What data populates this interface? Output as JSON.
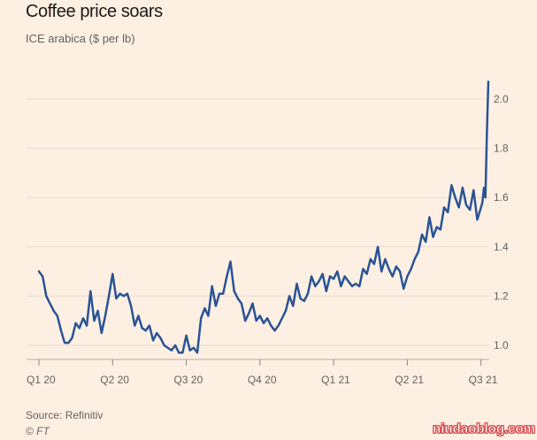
{
  "header": {
    "title": "Coffee price soars",
    "subtitle": "ICE arabica ($ per lb)"
  },
  "footer": {
    "source": "Source: Refinitiv",
    "copyright": "© FT"
  },
  "watermark": "niudaoblog.com",
  "colors": {
    "line": "#2a5394",
    "grid": "#e6d9ce",
    "background": "#fdf0e3",
    "text": "#66605c"
  },
  "chart_data": {
    "type": "line",
    "title": "Coffee price soars",
    "subtitle": "ICE arabica ($ per lb)",
    "ylabel": "",
    "xlabel": "",
    "ylim": [
      0.95,
      2.1
    ],
    "xlim": [
      0,
      6.1
    ],
    "yticks": [
      1.0,
      1.2,
      1.4,
      1.6,
      1.8,
      2.0
    ],
    "ytick_labels": [
      "1.0",
      "1.2",
      "1.4",
      "1.6",
      "1.8",
      "2.0"
    ],
    "xticks": [
      0,
      1,
      2,
      3,
      4,
      5,
      6
    ],
    "xtick_labels": [
      "Q1 20",
      "Q2 20",
      "Q3 20",
      "Q4 20",
      "Q1 21",
      "Q2 21",
      "Q3 21"
    ],
    "grid": "horizontal",
    "y_axis_side": "right",
    "series": [
      {
        "name": "",
        "x": [
          0.0,
          0.05,
          0.1,
          0.15,
          0.2,
          0.25,
          0.3,
          0.35,
          0.4,
          0.45,
          0.5,
          0.55,
          0.6,
          0.65,
          0.7,
          0.75,
          0.8,
          0.85,
          0.9,
          0.95,
          1.0,
          1.05,
          1.1,
          1.15,
          1.2,
          1.25,
          1.3,
          1.35,
          1.4,
          1.45,
          1.5,
          1.55,
          1.6,
          1.65,
          1.7,
          1.75,
          1.8,
          1.85,
          1.9,
          1.95,
          2.0,
          2.05,
          2.1,
          2.15,
          2.2,
          2.25,
          2.3,
          2.35,
          2.4,
          2.45,
          2.5,
          2.55,
          2.6,
          2.65,
          2.7,
          2.75,
          2.8,
          2.85,
          2.9,
          2.95,
          3.0,
          3.05,
          3.1,
          3.15,
          3.2,
          3.25,
          3.3,
          3.35,
          3.4,
          3.45,
          3.5,
          3.55,
          3.6,
          3.65,
          3.7,
          3.75,
          3.8,
          3.85,
          3.9,
          3.95,
          4.0,
          4.05,
          4.1,
          4.15,
          4.2,
          4.25,
          4.3,
          4.35,
          4.4,
          4.45,
          4.5,
          4.55,
          4.6,
          4.65,
          4.7,
          4.75,
          4.8,
          4.85,
          4.9,
          4.95,
          5.0,
          5.05,
          5.1,
          5.15,
          5.2,
          5.25,
          5.3,
          5.35,
          5.4,
          5.45,
          5.5,
          5.55,
          5.6,
          5.65,
          5.7,
          5.75,
          5.8,
          5.85,
          5.9,
          5.95,
          6.0,
          6.02,
          6.04,
          6.06,
          6.08,
          6.1
        ],
        "values": [
          1.3,
          1.28,
          1.2,
          1.17,
          1.14,
          1.12,
          1.06,
          1.01,
          1.01,
          1.03,
          1.09,
          1.07,
          1.11,
          1.08,
          1.22,
          1.1,
          1.14,
          1.05,
          1.12,
          1.2,
          1.29,
          1.19,
          1.21,
          1.2,
          1.21,
          1.16,
          1.08,
          1.12,
          1.07,
          1.06,
          1.08,
          1.02,
          1.05,
          1.03,
          1.0,
          0.99,
          0.98,
          1.0,
          0.97,
          0.97,
          1.04,
          0.98,
          0.99,
          0.97,
          1.11,
          1.15,
          1.12,
          1.24,
          1.16,
          1.21,
          1.21,
          1.28,
          1.34,
          1.22,
          1.19,
          1.17,
          1.1,
          1.13,
          1.17,
          1.1,
          1.12,
          1.09,
          1.11,
          1.08,
          1.06,
          1.08,
          1.11,
          1.14,
          1.2,
          1.16,
          1.25,
          1.19,
          1.18,
          1.21,
          1.28,
          1.24,
          1.26,
          1.29,
          1.22,
          1.28,
          1.27,
          1.3,
          1.24,
          1.28,
          1.26,
          1.24,
          1.25,
          1.24,
          1.31,
          1.29,
          1.35,
          1.33,
          1.4,
          1.3,
          1.35,
          1.31,
          1.28,
          1.32,
          1.3,
          1.23,
          1.28,
          1.31,
          1.35,
          1.38,
          1.45,
          1.42,
          1.52,
          1.44,
          1.48,
          1.47,
          1.56,
          1.54,
          1.65,
          1.6,
          1.56,
          1.64,
          1.57,
          1.55,
          1.63,
          1.51,
          1.56,
          1.58,
          1.64,
          1.6,
          1.85,
          2.07
        ]
      }
    ]
  }
}
